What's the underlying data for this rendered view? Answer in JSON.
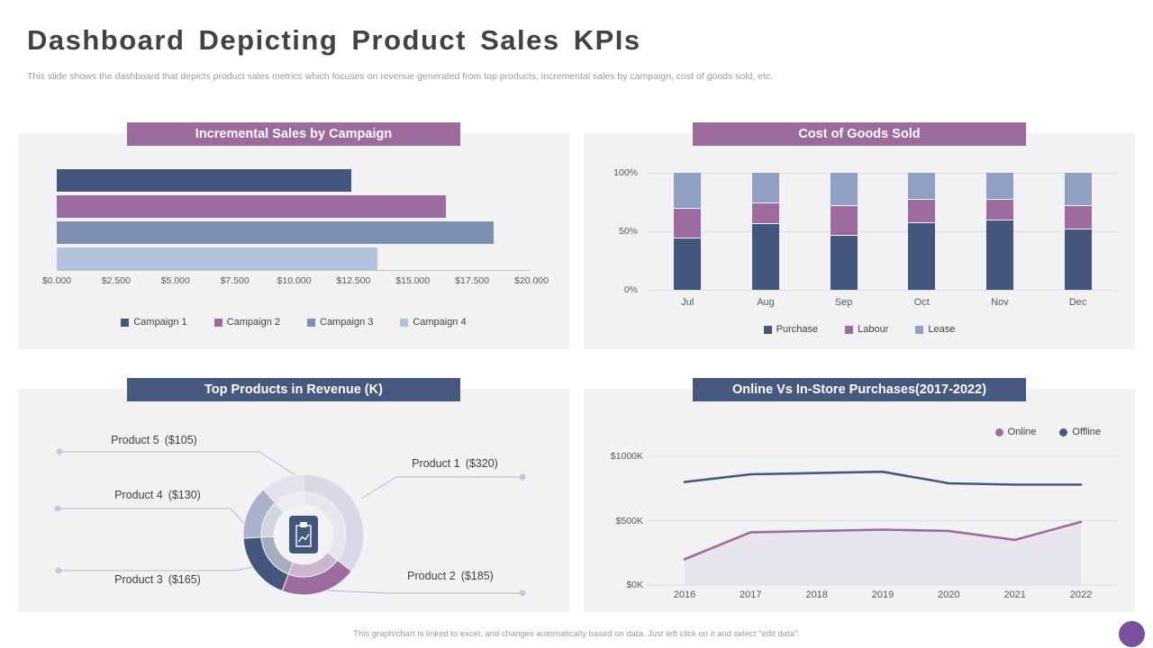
{
  "page": {
    "title": "Dashboard Depicting Product Sales KPIs",
    "subtitle": "This slide shows the dashboard that depicts product sales metrics which focuses on revenue generated from top products, incremental sales by campaign, cost of goods sold, etc.",
    "footer": "This graph/chart is linked to excel, and changes automatically based on data. Just left click on it and select \"edit data\"."
  },
  "colors": {
    "purple_header": "#9c6a9d",
    "navy_header": "#47587e",
    "navy": "#44567c",
    "purple": "#9e6b9e",
    "slate": "#7e8fb4",
    "light_blue": "#b4c3dd",
    "panel_bg": "#f2f2f4",
    "corner_circle": "#7a4f9b"
  },
  "chart_data": [
    {
      "id": "campaign",
      "type": "bar",
      "orientation": "horizontal",
      "title": "Incremental Sales by Campaign",
      "series": [
        {
          "name": "Campaign 1",
          "value": 12400,
          "color": "#44567c"
        },
        {
          "name": "Campaign 2",
          "value": 16400,
          "color": "#9e6b9e"
        },
        {
          "name": "Campaign 3",
          "value": 18400,
          "color": "#7e8fb4"
        },
        {
          "name": "Campaign 4",
          "value": 13500,
          "color": "#b4c3dd"
        }
      ],
      "xlim": [
        0,
        20000
      ],
      "x_ticks": [
        "$0.000",
        "$2.500",
        "$5.000",
        "$7.500",
        "$10.000",
        "$12.500",
        "$15.000",
        "$17.500",
        "$20.000"
      ],
      "legend_position": "bottom",
      "grid": false
    },
    {
      "id": "cogs",
      "type": "bar",
      "stacked": true,
      "stacked_100_percent": true,
      "title": "Cost of Goods Sold",
      "categories": [
        "Jul",
        "Aug",
        "Sep",
        "Oct",
        "Nov",
        "Dec"
      ],
      "series": [
        {
          "name": "Purchase",
          "color": "#44567c",
          "values": [
            45,
            57,
            47,
            58,
            60,
            52
          ]
        },
        {
          "name": "Labour",
          "color": "#9e6b9e",
          "values": [
            25,
            18,
            25,
            20,
            18,
            20
          ]
        },
        {
          "name": "Lease",
          "color": "#8fa0c4",
          "values": [
            30,
            25,
            28,
            22,
            22,
            28
          ]
        }
      ],
      "ylim": [
        0,
        100
      ],
      "y_ticks": [
        "100%",
        "50%",
        "0%"
      ],
      "legend_position": "bottom",
      "grid": true
    },
    {
      "id": "products",
      "type": "pie",
      "donut": true,
      "title": "Top Products in Revenue (K)",
      "items": [
        {
          "label": "Product 1",
          "value": 320,
          "value_label": "($320)",
          "color": "#d9d8e6"
        },
        {
          "label": "Product 2",
          "value": 185,
          "value_label": "($185)",
          "color": "#9e6b9e"
        },
        {
          "label": "Product 3",
          "value": 165,
          "value_label": "($165)",
          "color": "#44567c"
        },
        {
          "label": "Product 4",
          "value": 130,
          "value_label": "($130)",
          "color": "#a9b1cc"
        },
        {
          "label": "Product 5",
          "value": 105,
          "value_label": "($105)",
          "color": "#e4e3ed"
        }
      ]
    },
    {
      "id": "purchases",
      "type": "line",
      "title": "Online Vs In-Store Purchases(2017-2022)",
      "x": [
        2016,
        2017,
        2018,
        2019,
        2020,
        2021,
        2022
      ],
      "series": [
        {
          "name": "Online",
          "color": "#9e6b9e",
          "area": true,
          "values": [
            200,
            410,
            420,
            430,
            420,
            350,
            490
          ]
        },
        {
          "name": "Offline",
          "color": "#47587e",
          "area": false,
          "values": [
            800,
            860,
            870,
            880,
            790,
            780,
            780
          ]
        }
      ],
      "ylim": [
        0,
        1000
      ],
      "y_ticks": [
        "$1000K",
        "$500K",
        "$0K"
      ],
      "unit": "K",
      "legend_position": "top-right",
      "grid": true
    }
  ]
}
